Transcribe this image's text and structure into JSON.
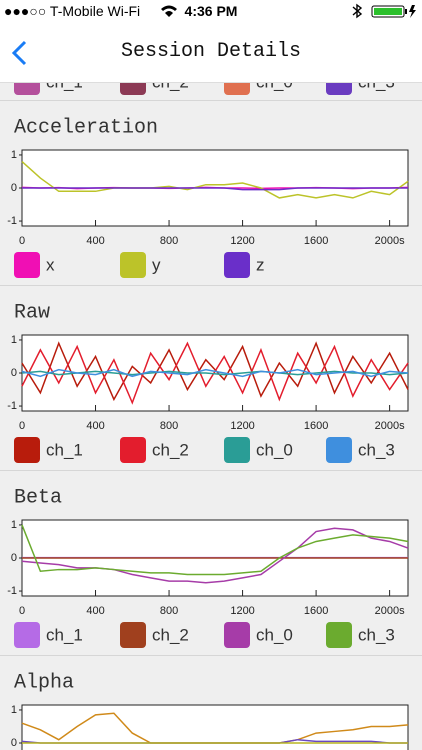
{
  "status_bar": {
    "carrier": "●●●○○ T-Mobile Wi-Fi",
    "time": "4:36 PM"
  },
  "nav": {
    "title": "Session Details"
  },
  "top_legend": [
    {
      "name": "ch_1",
      "color": "#b4509c"
    },
    {
      "name": "ch_2",
      "color": "#8c3a55"
    },
    {
      "name": "ch_0",
      "color": "#e07050"
    },
    {
      "name": "ch_3",
      "color": "#6a3cc0"
    }
  ],
  "sections": [
    {
      "title": "Acceleration",
      "x": [
        0,
        100,
        200,
        300,
        400,
        500,
        600,
        700,
        800,
        900,
        1000,
        1100,
        1200,
        1300,
        1400,
        1500,
        1600,
        1700,
        1800,
        1900,
        2000,
        2100
      ],
      "xlim": [
        0,
        2100
      ],
      "xticks": [
        0,
        400,
        800,
        1200,
        1600,
        {
          "value": 2000,
          "label": "2000s"
        }
      ],
      "ylim": [
        -1.15,
        1.15
      ],
      "yticks": [
        1,
        0,
        -1
      ],
      "series": [
        {
          "name": "x",
          "color": "#f00fb4",
          "values": [
            0.02,
            0,
            0.01,
            -0.02,
            0,
            0.01,
            0,
            0,
            -0.01,
            0,
            0.02,
            0,
            0,
            -0.01,
            0,
            0,
            0.01,
            0,
            -0.02,
            0,
            0,
            0.02
          ]
        },
        {
          "name": "y",
          "color": "#bcc329",
          "values": [
            0.8,
            0.3,
            -0.1,
            -0.1,
            -0.1,
            0,
            0,
            0,
            0.05,
            -0.05,
            0.1,
            0.1,
            0.15,
            0,
            -0.3,
            -0.2,
            -0.3,
            -0.2,
            -0.3,
            -0.1,
            -0.2,
            0.2
          ]
        },
        {
          "name": "z",
          "color": "#6a2fc9",
          "values": [
            0,
            0,
            0,
            0,
            0,
            0,
            0,
            0,
            0,
            0,
            0,
            0,
            -0.05,
            -0.05,
            -0.05,
            0,
            0,
            0,
            0,
            0,
            0,
            0
          ]
        }
      ]
    },
    {
      "title": "Raw",
      "x": [
        0,
        100,
        200,
        300,
        400,
        500,
        600,
        700,
        800,
        900,
        1000,
        1100,
        1200,
        1300,
        1400,
        1500,
        1600,
        1700,
        1800,
        1900,
        2000,
        2100
      ],
      "xlim": [
        0,
        2100
      ],
      "xticks": [
        0,
        400,
        800,
        1200,
        1600,
        {
          "value": 2000,
          "label": "2000s"
        }
      ],
      "ylim": [
        -1.15,
        1.15
      ],
      "yticks": [
        1,
        0,
        -1
      ],
      "series": [
        {
          "name": "ch_1",
          "color": "#b81c0c",
          "values": [
            0.3,
            -0.6,
            0.9,
            -0.4,
            0.5,
            -0.8,
            0.2,
            -0.3,
            0.7,
            -0.5,
            0.4,
            -0.2,
            0.8,
            -0.7,
            0.3,
            -0.4,
            0.9,
            -0.6,
            0.5,
            -0.3,
            0.6,
            -0.5
          ]
        },
        {
          "name": "ch_2",
          "color": "#e31d2d",
          "values": [
            -0.4,
            0.7,
            -0.3,
            0.8,
            -0.6,
            0.4,
            -0.9,
            0.6,
            -0.2,
            0.9,
            -0.4,
            0.5,
            -0.6,
            0.7,
            -0.8,
            0.6,
            -0.3,
            0.8,
            -0.7,
            0.4,
            -0.5,
            0.3
          ]
        },
        {
          "name": "ch_0",
          "color": "#2a9d96",
          "values": [
            0,
            0.05,
            -0.05,
            0,
            0.05,
            0,
            -0.05,
            0,
            0.05,
            0,
            0,
            -0.05,
            0,
            0.05,
            0,
            -0.05,
            0,
            0.05,
            0,
            0,
            -0.05,
            0
          ]
        },
        {
          "name": "ch_3",
          "color": "#3f8fde",
          "values": [
            0.05,
            -0.1,
            0.1,
            0,
            -0.05,
            0.1,
            -0.1,
            0.05,
            0,
            -0.05,
            0.1,
            0,
            -0.1,
            0.05,
            0,
            0.1,
            -0.05,
            0,
            0.05,
            -0.1,
            0.05,
            0
          ]
        }
      ]
    },
    {
      "title": "Beta",
      "x": [
        0,
        100,
        200,
        300,
        400,
        500,
        600,
        700,
        800,
        900,
        1000,
        1100,
        1200,
        1300,
        1400,
        1500,
        1600,
        1700,
        1800,
        1900,
        2000,
        2100
      ],
      "xlim": [
        0,
        2100
      ],
      "xticks": [
        0,
        400,
        800,
        1200,
        1600,
        {
          "value": 2000,
          "label": "2000s"
        }
      ],
      "ylim": [
        -1.15,
        1.15
      ],
      "yticks": [
        1,
        0,
        -1
      ],
      "series": [
        {
          "name": "ch_1",
          "color": "#b56be6",
          "values": [
            0.01,
            0.01,
            0.01,
            0.01,
            0.01,
            0.01,
            0.01,
            0.01,
            0.01,
            0.01,
            0.01,
            0.01,
            0.01,
            0.01,
            0.01,
            0.01,
            0.01,
            0.01,
            0.01,
            0.01,
            0.01,
            0.01
          ]
        },
        {
          "name": "ch_2",
          "color": "#a0401e",
          "values": [
            0,
            0,
            0,
            0,
            0,
            0,
            0,
            0,
            0,
            0,
            0,
            0,
            0,
            0,
            0,
            0,
            0,
            0,
            0,
            0,
            0,
            0
          ]
        },
        {
          "name": "ch_0",
          "color": "#a63ca8",
          "values": [
            -0.1,
            -0.15,
            -0.2,
            -0.3,
            -0.3,
            -0.35,
            -0.5,
            -0.6,
            -0.7,
            -0.7,
            -0.75,
            -0.7,
            -0.6,
            -0.5,
            -0.1,
            0.3,
            0.8,
            0.9,
            0.85,
            0.6,
            0.5,
            0.3
          ]
        },
        {
          "name": "ch_3",
          "color": "#6bab2f",
          "values": [
            1,
            -0.4,
            -0.35,
            -0.35,
            -0.3,
            -0.35,
            -0.4,
            -0.45,
            -0.45,
            -0.5,
            -0.5,
            -0.5,
            -0.45,
            -0.4,
            0,
            0.3,
            0.5,
            0.6,
            0.7,
            0.65,
            0.6,
            0.5
          ]
        }
      ]
    },
    {
      "title": "Alpha",
      "x": [
        0,
        100,
        200,
        300,
        400,
        500,
        600,
        700,
        800,
        900,
        1000,
        1100,
        1200,
        1300,
        1400,
        1500,
        1600,
        1700,
        1800,
        1900,
        2000,
        2100
      ],
      "xlim": [
        0,
        2100
      ],
      "ylim": [
        -1.15,
        1.15
      ],
      "yticks": [
        1,
        0
      ],
      "series": [
        {
          "color": "#d08a1a",
          "values": [
            0.6,
            0.4,
            0.1,
            0.5,
            0.85,
            0.9,
            0.3,
            0,
            0,
            0,
            0,
            0,
            0,
            0,
            0,
            0.1,
            0.3,
            0.35,
            0.4,
            0.5,
            0.5,
            0.55
          ]
        },
        {
          "color": "#6a4ac0",
          "values": [
            0.05,
            0,
            0,
            0,
            0,
            0,
            0,
            0,
            0,
            0,
            0,
            0,
            0,
            0,
            0,
            0.1,
            0.05,
            0.05,
            0.05,
            0.05,
            0,
            0
          ]
        },
        {
          "color": "#b8b520",
          "values": [
            0,
            0,
            0,
            0,
            0,
            0,
            0,
            0,
            0,
            0,
            0,
            0,
            0,
            0,
            0,
            0,
            0,
            0,
            0,
            0,
            0,
            0
          ]
        }
      ]
    }
  ]
}
